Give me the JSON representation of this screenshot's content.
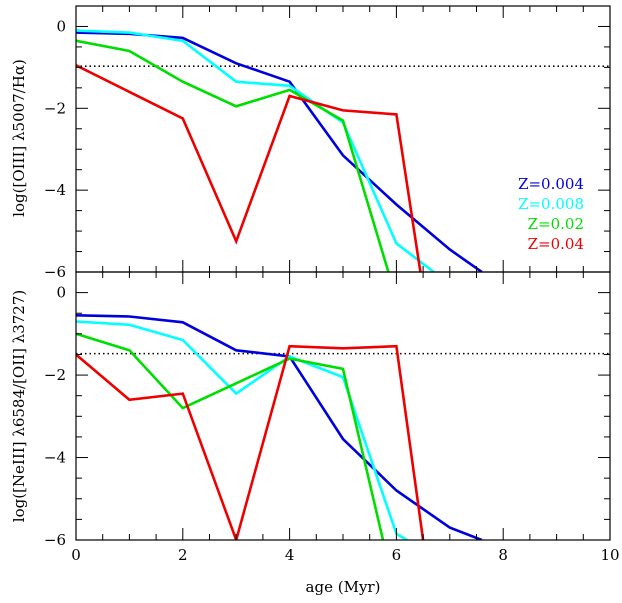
{
  "chart_data": {
    "type": "line",
    "xlabel": "age (Myr)",
    "xlim": [
      0,
      10
    ],
    "x_ticks": [
      0,
      2,
      4,
      6,
      8,
      10
    ],
    "legend": {
      "placement": "right-middle of top panel",
      "entries": [
        {
          "label": "Z=0.004",
          "color": "#0000dd"
        },
        {
          "label": "Z=0.008",
          "color": "#00ffff"
        },
        {
          "label": "Z=0.02",
          "color": "#00dd00"
        },
        {
          "label": "Z=0.04",
          "color": "#ee0000"
        }
      ]
    },
    "panels": [
      {
        "ylabel": "log([OIII] λ5007/Hα)",
        "ylim": [
          -6,
          0.5
        ],
        "y_ticks": [
          0,
          -2,
          -4,
          -6
        ],
        "reference_line": {
          "y": -0.97,
          "style": "dotted"
        },
        "series": [
          {
            "name": "Z=0.004",
            "color": "#0000dd",
            "x": [
              0,
              1,
              2,
              3,
              4,
              5,
              6,
              7,
              7.6
            ],
            "y": [
              -0.15,
              -0.18,
              -0.28,
              -0.9,
              -1.35,
              -3.15,
              -4.35,
              -5.45,
              -6
            ]
          },
          {
            "name": "Z=0.008",
            "color": "#00ffff",
            "x": [
              0,
              1,
              2,
              3,
              4,
              5,
              6,
              6.7
            ],
            "y": [
              -0.1,
              -0.15,
              -0.35,
              -1.35,
              -1.45,
              -2.35,
              -5.3,
              -6
            ]
          },
          {
            "name": "Z=0.02",
            "color": "#00dd00",
            "x": [
              0,
              1,
              2,
              3,
              4,
              5,
              5.85
            ],
            "y": [
              -0.35,
              -0.6,
              -1.35,
              -1.95,
              -1.55,
              -2.3,
              -6
            ]
          },
          {
            "name": "Z=0.04",
            "color": "#ee0000",
            "x": [
              0,
              1,
              2,
              3,
              4,
              5,
              6,
              6.45
            ],
            "y": [
              -0.95,
              -1.6,
              -2.25,
              -5.25,
              -1.7,
              -2.05,
              -2.15,
              -6
            ]
          }
        ]
      },
      {
        "ylabel": "log([NeIII] λ6584/[OII] λ3727)",
        "ylim": [
          -6,
          0.5
        ],
        "y_ticks": [
          0,
          -2,
          -4,
          -6
        ],
        "reference_line": {
          "y": -1.48,
          "style": "dotted"
        },
        "series": [
          {
            "name": "Z=0.004",
            "color": "#0000dd",
            "x": [
              0,
              1,
              2,
              3,
              4,
              5,
              6,
              7,
              7.6
            ],
            "y": [
              -0.55,
              -0.58,
              -0.72,
              -1.4,
              -1.55,
              -3.55,
              -4.8,
              -5.7,
              -6
            ]
          },
          {
            "name": "Z=0.008",
            "color": "#00ffff",
            "x": [
              0,
              1,
              2,
              3,
              4,
              5,
              6,
              6.2
            ],
            "y": [
              -0.7,
              -0.78,
              -1.15,
              -2.45,
              -1.55,
              -2.05,
              -5.85,
              -6
            ]
          },
          {
            "name": "Z=0.02",
            "color": "#00dd00",
            "x": [
              0,
              1,
              2,
              3,
              4,
              5,
              5.75
            ],
            "y": [
              -1.0,
              -1.4,
              -2.8,
              -2.2,
              -1.6,
              -1.85,
              -6
            ]
          },
          {
            "name": "Z=0.04",
            "color": "#ee0000",
            "x": [
              0,
              1,
              2,
              3,
              4,
              5,
              6,
              6.5
            ],
            "y": [
              -1.5,
              -2.6,
              -2.45,
              -6,
              -1.3,
              -1.35,
              -1.3,
              -6
            ]
          }
        ]
      }
    ]
  }
}
